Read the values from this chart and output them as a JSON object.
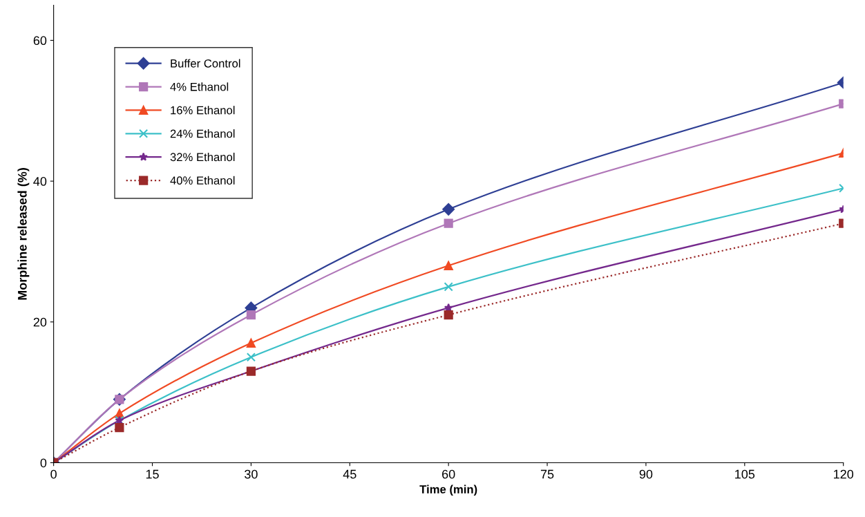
{
  "chart_data": {
    "type": "line",
    "xlabel": "Time (min)",
    "ylabel": "Morphine released (%)",
    "x": [
      0,
      10,
      30,
      60,
      120
    ],
    "xlim": [
      0,
      120
    ],
    "xticks": [
      0,
      15,
      30,
      45,
      60,
      75,
      90,
      105,
      120
    ],
    "ylim": [
      0,
      65
    ],
    "yticks": [
      0,
      20,
      40,
      60
    ],
    "grid": false,
    "legend": "top left",
    "series": [
      {
        "name": "Buffer Control",
        "color": "#2e3f94",
        "marker": "diamond",
        "line_style": "solid",
        "values": [
          0,
          9,
          22,
          36,
          54
        ]
      },
      {
        "name": "4% Ethanol",
        "color": "#b077b8",
        "marker": "square",
        "line_style": "solid",
        "values": [
          0,
          9,
          21,
          34,
          51
        ]
      },
      {
        "name": "16% Ethanol",
        "color": "#f04a23",
        "marker": "triangle",
        "line_style": "solid",
        "values": [
          0,
          7,
          17,
          28,
          44
        ]
      },
      {
        "name": "24% Ethanol",
        "color": "#3cc0c8",
        "marker": "cross",
        "line_style": "solid",
        "values": [
          0,
          6,
          15,
          25,
          39
        ]
      },
      {
        "name": "32% Ethanol",
        "color": "#74288c",
        "marker": "star",
        "line_style": "solid",
        "values": [
          0,
          6,
          13,
          22,
          36
        ]
      },
      {
        "name": "40% Ethanol",
        "color": "#9b2a2a",
        "marker": "square",
        "line_style": "dotted",
        "values": [
          0,
          5,
          13,
          21,
          34
        ]
      }
    ]
  }
}
